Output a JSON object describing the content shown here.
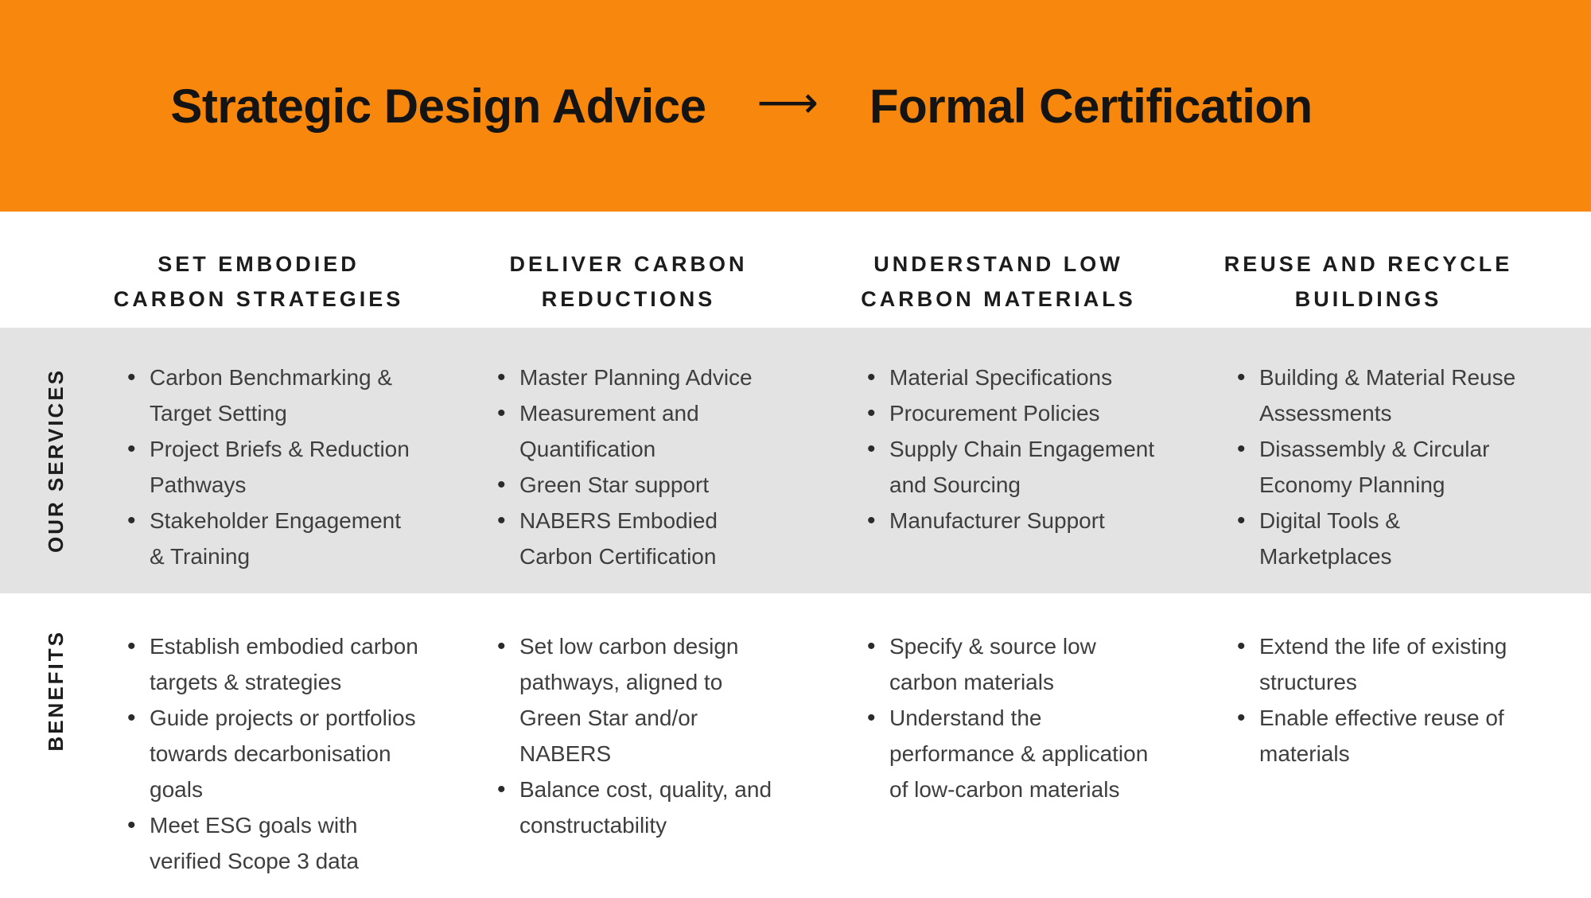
{
  "banner": {
    "title_left": "Strategic Design Advice",
    "arrow_glyph": "⟶",
    "title_right": "Formal Certification"
  },
  "row_labels": {
    "services": "OUR SERVICES",
    "benefits": "BENEFITS"
  },
  "columns": [
    {
      "header": "SET EMBODIED\nCARBON STRATEGIES",
      "services": [
        "Carbon Benchmarking &\nTarget Setting",
        "Project Briefs & Reduction\nPathways",
        "Stakeholder Engagement\n& Training"
      ],
      "benefits": [
        "Establish embodied carbon\ntargets & strategies",
        "Guide projects or portfolios\ntowards decarbonisation\ngoals",
        "Meet ESG goals with\nverified Scope 3 data"
      ]
    },
    {
      "header": "DELIVER CARBON\nREDUCTIONS",
      "services": [
        "Master Planning Advice",
        "Measurement and\nQuantification",
        "Green Star support",
        "NABERS Embodied\nCarbon Certification"
      ],
      "benefits": [
        "Set low carbon design\npathways, aligned to\nGreen Star and/or\nNABERS",
        "Balance cost, quality, and\nconstructability"
      ]
    },
    {
      "header": "UNDERSTAND LOW\nCARBON MATERIALS",
      "services": [
        "Material Specifications",
        "Procurement Policies",
        "Supply Chain Engagement\nand Sourcing",
        "Manufacturer Support"
      ],
      "benefits": [
        "Specify & source low\ncarbon materials",
        "Understand the\nperformance & application\nof low-carbon materials"
      ]
    },
    {
      "header": "REUSE AND RECYCLE\nBUILDINGS",
      "services": [
        "Building & Material Reuse\nAssessments",
        "Disassembly & Circular\nEconomy Planning",
        "Digital Tools &\nMarketplaces"
      ],
      "benefits": [
        "Extend the life of existing\nstructures",
        "Enable effective reuse of\nmaterials"
      ]
    }
  ],
  "colors": {
    "accent_orange": "#F8870E",
    "services_band_gray": "#E3E3E4",
    "title_text": "#141414",
    "body_text": "#3E3E3E"
  }
}
